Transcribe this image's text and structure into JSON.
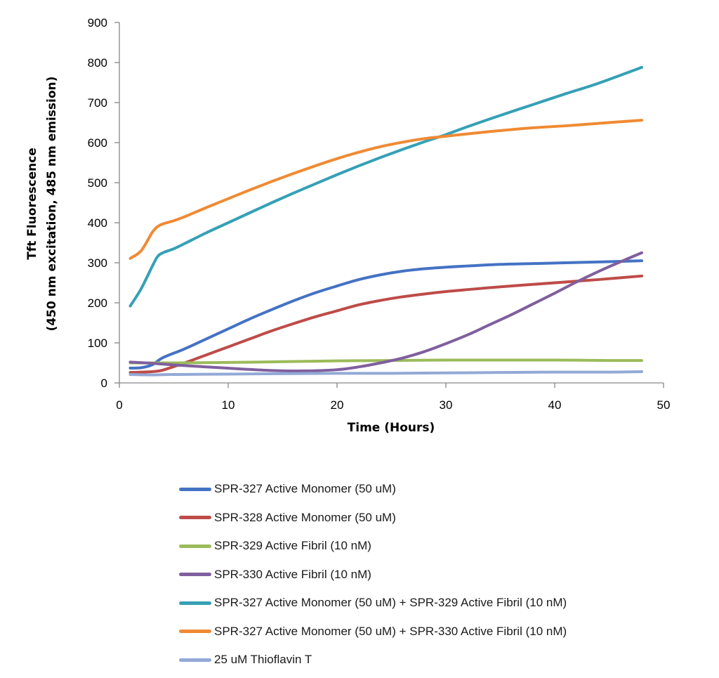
{
  "chart_data": {
    "type": "line",
    "title": "",
    "xlabel": "Time (Hours)",
    "ylabel_line1": "Tft Fluorescence",
    "ylabel_line2": "(450 nm excitation, 485 nm emission)",
    "xlim": [
      0,
      50
    ],
    "ylim": [
      0,
      900
    ],
    "xticks": [
      0,
      10,
      20,
      30,
      40,
      50
    ],
    "yticks": [
      0,
      100,
      200,
      300,
      400,
      500,
      600,
      700,
      800,
      900
    ],
    "grid": false,
    "legend_position": "bottom",
    "series": [
      {
        "name": "SPR-327 Active Monomer (50 uM)",
        "color": "#4472C4",
        "x": [
          1,
          2,
          3,
          4,
          6,
          8,
          10,
          12,
          14,
          16,
          18,
          20,
          22,
          24,
          26,
          28,
          30,
          32,
          35,
          38,
          41,
          44,
          48
        ],
        "y": [
          37,
          38,
          45,
          63,
          85,
          110,
          135,
          160,
          183,
          205,
          225,
          242,
          258,
          270,
          279,
          285,
          289,
          292,
          296,
          298,
          300,
          302,
          305
        ]
      },
      {
        "name": "SPR-328 Active Monomer (50 uM)",
        "color": "#BE4B48",
        "x": [
          1,
          2,
          3,
          4,
          6,
          8,
          10,
          12,
          14,
          16,
          18,
          20,
          22,
          24,
          26,
          28,
          30,
          32,
          35,
          38,
          41,
          44,
          48
        ],
        "y": [
          26,
          27,
          28,
          32,
          50,
          70,
          90,
          110,
          130,
          148,
          165,
          180,
          195,
          206,
          215,
          222,
          228,
          233,
          240,
          246,
          252,
          258,
          267
        ]
      },
      {
        "name": "SPR-329 Active Fibril (10 nM)",
        "color": "#9BBB59",
        "x": [
          1,
          5,
          10,
          15,
          20,
          25,
          30,
          35,
          40,
          45,
          48
        ],
        "y": [
          50,
          50,
          51,
          53,
          55,
          56,
          57,
          57,
          57,
          56,
          56
        ]
      },
      {
        "name": "SPR-330 Active Fibril (10 nM)",
        "color": "#7F5F9E",
        "x": [
          1,
          3,
          5,
          8,
          11,
          14,
          17,
          20,
          22,
          24,
          26,
          28,
          30,
          32,
          34,
          36,
          38,
          40,
          42,
          44,
          46,
          48
        ],
        "y": [
          52,
          49,
          45,
          40,
          35,
          31,
          30,
          33,
          40,
          50,
          62,
          78,
          98,
          120,
          145,
          170,
          197,
          224,
          252,
          278,
          302,
          325
        ]
      },
      {
        "name": "SPR-327 Active Monomer (50 uM) + SPR-329 Active Fibril (10 nM)",
        "color": "#35A0B6",
        "x": [
          1,
          2,
          3,
          3.5,
          4,
          5,
          6,
          8,
          10,
          12,
          14,
          16,
          18,
          20,
          22,
          24,
          26,
          28,
          30,
          32,
          35,
          38,
          41,
          44,
          48
        ],
        "y": [
          192,
          235,
          290,
          315,
          325,
          335,
          348,
          375,
          400,
          425,
          450,
          474,
          497,
          520,
          542,
          563,
          583,
          602,
          620,
          640,
          668,
          695,
          722,
          748,
          788
        ]
      },
      {
        "name": "SPR-327 Active Monomer (50 uM) + SPR-330 Active Fibril (10 nM)",
        "color": "#F08A33",
        "x": [
          1,
          2,
          3,
          3.5,
          4,
          5,
          6,
          8,
          10,
          12,
          14,
          16,
          18,
          20,
          22,
          24,
          26,
          28,
          30,
          32,
          35,
          38,
          41,
          44,
          48
        ],
        "y": [
          311,
          330,
          375,
          390,
          397,
          405,
          415,
          438,
          460,
          482,
          503,
          523,
          542,
          560,
          576,
          590,
          601,
          610,
          616,
          622,
          630,
          637,
          642,
          648,
          656
        ]
      },
      {
        "name": "25 uM Thioflavin T",
        "color": "#93A9D6",
        "x": [
          1,
          3,
          5,
          10,
          15,
          20,
          25,
          30,
          35,
          40,
          45,
          48
        ],
        "y": [
          21,
          20,
          21,
          22,
          23,
          24,
          24,
          25,
          26,
          27,
          27,
          28
        ]
      }
    ]
  }
}
